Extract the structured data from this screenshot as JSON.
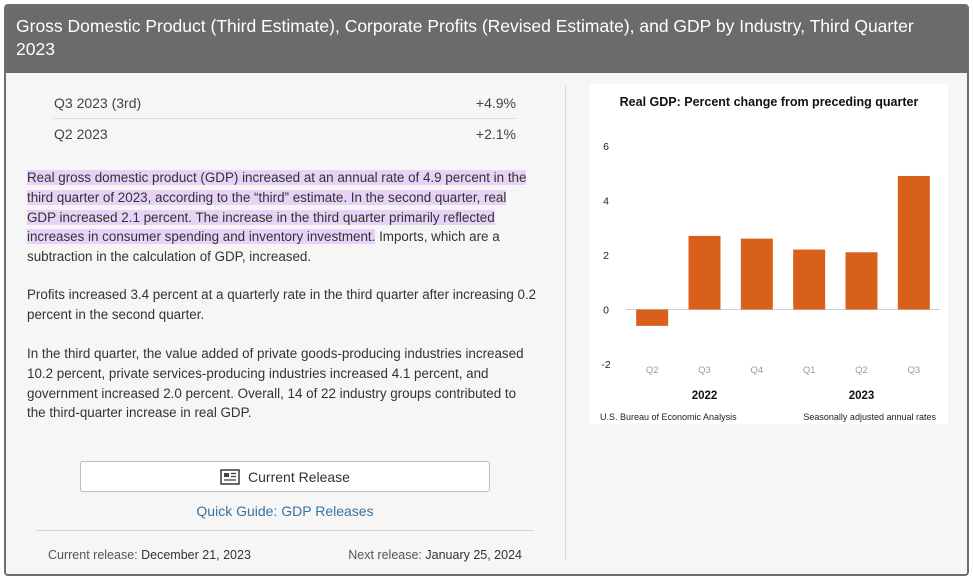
{
  "header": {
    "title": "Gross Domestic Product (Third Estimate), Corporate Profits (Revised Estimate), and GDP by Industry, Third Quarter 2023"
  },
  "stats": [
    {
      "label": "Q3 2023 (3rd)",
      "value": "+4.9%"
    },
    {
      "label": "Q2 2023",
      "value": "+2.1%"
    }
  ],
  "summary": {
    "p1_highlight": "Real gross domestic product (GDP) increased at an annual rate of 4.9 percent in the third quarter of 2023, according to the “third” estimate. In the second quarter, real GDP increased 2.1 percent. The increase in the third quarter primarily reflected increases in consumer spending and inventory investment.",
    "p1_rest": " Imports, which are a subtraction in the calculation of GDP, increased.",
    "p2": "Profits increased 3.4 percent at a quarterly rate in the third quarter after increasing 0.2 percent in the second quarter.",
    "p3": "In the third quarter, the value added of private goods-producing industries increased 10.2 percent, private services-producing industries increased 4.1 percent, and government increased 2.0 percent. Overall, 14 of 22 industry groups contributed to the third-quarter increase in real GDP."
  },
  "actions": {
    "current_release": "Current Release",
    "quick_guide": "Quick Guide: GDP Releases"
  },
  "release_dates": {
    "current_label": "Current release:",
    "current_date": "December 21, 2023",
    "next_label": "Next release:",
    "next_date": "January 25, 2024"
  },
  "colors": {
    "header_bg": "#6b6b6b",
    "bar": "#d9601a",
    "highlight": "#e7d3f7",
    "link": "#3a73a0"
  },
  "chart_data": {
    "type": "bar",
    "title": "Real GDP:  Percent change from preceding quarter",
    "categories": [
      "Q2",
      "Q3",
      "Q4",
      "Q1",
      "Q2",
      "Q3"
    ],
    "year_groups": [
      {
        "label": "2022",
        "span": [
          0,
          2
        ]
      },
      {
        "label": "2023",
        "span": [
          3,
          5
        ]
      }
    ],
    "values": [
      -0.6,
      2.7,
      2.6,
      2.2,
      2.1,
      4.9
    ],
    "ylim": [
      -2,
      6
    ],
    "yticks": [
      "-2",
      "0",
      "2",
      "4",
      "6"
    ],
    "source": "U.S. Bureau of Economic Analysis",
    "note": "Seasonally adjusted annual rates"
  }
}
